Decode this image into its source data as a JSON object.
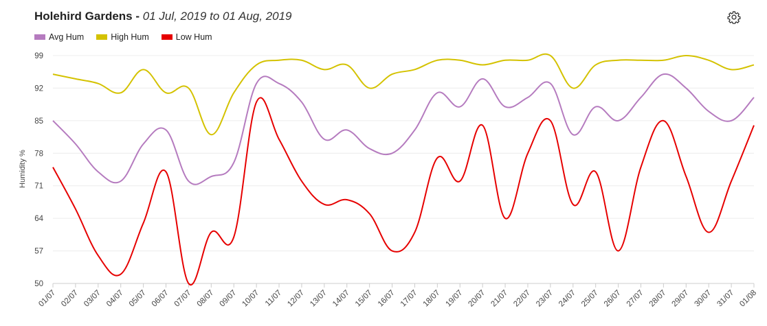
{
  "header": {
    "location": "Holehird Gardens",
    "separator": " - ",
    "date_range": "01 Jul, 2019 to 01 Aug, 2019",
    "settings_icon": "gear-icon"
  },
  "chart_data": {
    "type": "line",
    "title": "Holehird Gardens - 01 Jul, 2019 to 01 Aug, 2019",
    "xlabel": "",
    "ylabel": "Humidity %",
    "ylim": [
      50,
      99
    ],
    "yticks": [
      50,
      57,
      64,
      71,
      78,
      85,
      92,
      99
    ],
    "categories": [
      "01/07",
      "02/07",
      "03/07",
      "04/07",
      "05/07",
      "06/07",
      "07/07",
      "08/07",
      "09/07",
      "10/07",
      "11/07",
      "12/07",
      "13/07",
      "14/07",
      "15/07",
      "16/07",
      "17/07",
      "18/07",
      "19/07",
      "20/07",
      "21/07",
      "22/07",
      "23/07",
      "24/07",
      "25/07",
      "26/07",
      "27/07",
      "28/07",
      "29/07",
      "30/07",
      "31/07",
      "01/08"
    ],
    "grid": true,
    "legend_position": "top-left",
    "series": [
      {
        "name": "Avg Hum",
        "color": "#b57bbf",
        "values": [
          85,
          80,
          74,
          72,
          80,
          83,
          72,
          73,
          76,
          93,
          93,
          89,
          81,
          83,
          79,
          78,
          83,
          91,
          88,
          94,
          88,
          90,
          93,
          82,
          88,
          85,
          90,
          95,
          92,
          87,
          85,
          90
        ]
      },
      {
        "name": "High Hum",
        "color": "#d4c200",
        "values": [
          95,
          94,
          93,
          91,
          96,
          91,
          92,
          82,
          91,
          97,
          98,
          98,
          96,
          97,
          92,
          95,
          96,
          98,
          98,
          97,
          98,
          98,
          99,
          92,
          97,
          98,
          98,
          98,
          99,
          98,
          96,
          97
        ]
      },
      {
        "name": "Low Hum",
        "color": "#e60000",
        "values": [
          75,
          66,
          56,
          52,
          63,
          74,
          50,
          61,
          60,
          89,
          81,
          72,
          67,
          68,
          65,
          57,
          61,
          77,
          72,
          84,
          64,
          78,
          85,
          67,
          74,
          57,
          75,
          85,
          73,
          61,
          72,
          84
        ]
      }
    ]
  }
}
